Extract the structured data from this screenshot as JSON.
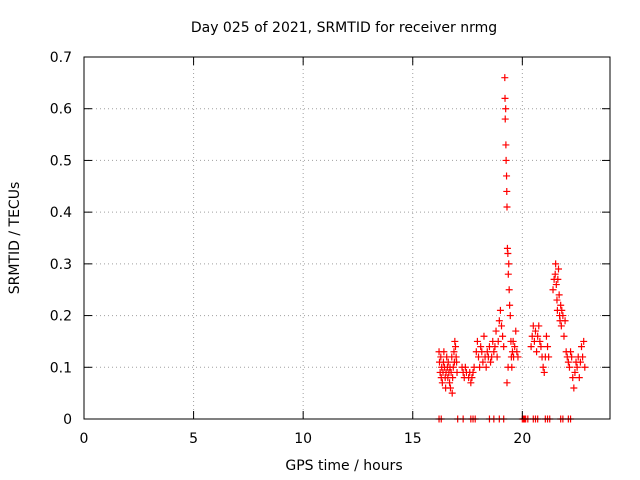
{
  "chart_data": {
    "type": "scatter",
    "title": "Day 025 of 2021, SRMTID for receiver nrmg",
    "xlabel": "GPS time / hours",
    "ylabel": "SRMTID / TECUs",
    "xlim": [
      0,
      24
    ],
    "ylim": [
      0,
      0.7
    ],
    "xticks": [
      "0",
      "5",
      "10",
      "15",
      "20"
    ],
    "yticks": [
      "0",
      "0.1",
      "0.2",
      "0.3",
      "0.4",
      "0.5",
      "0.6",
      "0.7"
    ],
    "grid": true,
    "marker": "+",
    "color": "#ff0000",
    "series": [
      {
        "name": "SRMTID",
        "points": [
          [
            16.2,
            0.13
          ],
          [
            16.22,
            0.11
          ],
          [
            16.25,
            0.09
          ],
          [
            16.28,
            0.12
          ],
          [
            16.3,
            0.08
          ],
          [
            16.32,
            0.1
          ],
          [
            16.35,
            0.07
          ],
          [
            16.38,
            0.09
          ],
          [
            16.4,
            0.11
          ],
          [
            16.42,
            0.13
          ],
          [
            16.45,
            0.1
          ],
          [
            16.48,
            0.08
          ],
          [
            16.5,
            0.06
          ],
          [
            16.52,
            0.09
          ],
          [
            16.55,
            0.12
          ],
          [
            16.58,
            0.1
          ],
          [
            16.6,
            0.08
          ],
          [
            16.62,
            0.11
          ],
          [
            16.65,
            0.09
          ],
          [
            16.68,
            0.07
          ],
          [
            16.7,
            0.1
          ],
          [
            16.72,
            0.06
          ],
          [
            16.75,
            0.09
          ],
          [
            16.78,
            0.12
          ],
          [
            16.8,
            0.05
          ],
          [
            16.82,
            0.08
          ],
          [
            16.85,
            0.1
          ],
          [
            16.88,
            0.13
          ],
          [
            16.9,
            0.11
          ],
          [
            16.92,
            0.15
          ],
          [
            16.95,
            0.14
          ],
          [
            16.98,
            0.12
          ],
          [
            17.0,
            0.11
          ],
          [
            17.02,
            0.09
          ],
          [
            17.25,
            0.1
          ],
          [
            17.3,
            0.09
          ],
          [
            17.35,
            0.08
          ],
          [
            17.4,
            0.1
          ],
          [
            17.45,
            0.09
          ],
          [
            17.55,
            0.08
          ],
          [
            17.6,
            0.09
          ],
          [
            17.65,
            0.07
          ],
          [
            17.7,
            0.08
          ],
          [
            17.75,
            0.09
          ],
          [
            17.8,
            0.1
          ],
          [
            17.9,
            0.13
          ],
          [
            17.95,
            0.15
          ],
          [
            18.0,
            0.12
          ],
          [
            18.05,
            0.1
          ],
          [
            18.1,
            0.14
          ],
          [
            18.15,
            0.13
          ],
          [
            18.2,
            0.11
          ],
          [
            18.25,
            0.16
          ],
          [
            18.3,
            0.12
          ],
          [
            18.35,
            0.1
          ],
          [
            18.4,
            0.13
          ],
          [
            18.45,
            0.12
          ],
          [
            18.5,
            0.14
          ],
          [
            18.55,
            0.11
          ],
          [
            18.6,
            0.12
          ],
          [
            18.65,
            0.15
          ],
          [
            18.7,
            0.13
          ],
          [
            18.75,
            0.14
          ],
          [
            18.8,
            0.17
          ],
          [
            18.85,
            0.12
          ],
          [
            18.9,
            0.15
          ],
          [
            18.95,
            0.19
          ],
          [
            19.0,
            0.21
          ],
          [
            19.05,
            0.18
          ],
          [
            19.1,
            0.16
          ],
          [
            19.15,
            0.14
          ],
          [
            19.2,
            0.66
          ],
          [
            19.21,
            0.62
          ],
          [
            19.22,
            0.58
          ],
          [
            19.24,
            0.6
          ],
          [
            19.25,
            0.53
          ],
          [
            19.26,
            0.5
          ],
          [
            19.28,
            0.47
          ],
          [
            19.29,
            0.44
          ],
          [
            19.3,
            0.41
          ],
          [
            19.32,
            0.33
          ],
          [
            19.34,
            0.32
          ],
          [
            19.36,
            0.28
          ],
          [
            19.38,
            0.3
          ],
          [
            19.4,
            0.25
          ],
          [
            19.42,
            0.22
          ],
          [
            19.45,
            0.2
          ],
          [
            19.48,
            0.15
          ],
          [
            19.5,
            0.12
          ],
          [
            19.52,
            0.1
          ],
          [
            19.55,
            0.13
          ],
          [
            19.58,
            0.15
          ],
          [
            19.6,
            0.12
          ],
          [
            19.65,
            0.14
          ],
          [
            19.7,
            0.17
          ],
          [
            19.75,
            0.13
          ],
          [
            19.8,
            0.12
          ],
          [
            19.3,
            0.07
          ],
          [
            19.35,
            0.1
          ],
          [
            20.4,
            0.14
          ],
          [
            20.45,
            0.16
          ],
          [
            20.5,
            0.18
          ],
          [
            20.55,
            0.15
          ],
          [
            20.6,
            0.17
          ],
          [
            20.65,
            0.13
          ],
          [
            20.7,
            0.16
          ],
          [
            20.75,
            0.18
          ],
          [
            20.8,
            0.15
          ],
          [
            20.85,
            0.14
          ],
          [
            20.9,
            0.12
          ],
          [
            20.95,
            0.1
          ],
          [
            21.0,
            0.09
          ],
          [
            21.05,
            0.12
          ],
          [
            21.1,
            0.16
          ],
          [
            21.15,
            0.14
          ],
          [
            21.2,
            0.12
          ],
          [
            21.4,
            0.25
          ],
          [
            21.45,
            0.27
          ],
          [
            21.5,
            0.28
          ],
          [
            21.52,
            0.3
          ],
          [
            21.55,
            0.26
          ],
          [
            21.58,
            0.23
          ],
          [
            21.6,
            0.21
          ],
          [
            21.62,
            0.27
          ],
          [
            21.65,
            0.29
          ],
          [
            21.68,
            0.24
          ],
          [
            21.7,
            0.2
          ],
          [
            21.72,
            0.19
          ],
          [
            21.75,
            0.22
          ],
          [
            21.78,
            0.18
          ],
          [
            21.8,
            0.21
          ],
          [
            21.85,
            0.2
          ],
          [
            21.9,
            0.16
          ],
          [
            21.95,
            0.19
          ],
          [
            22.0,
            0.13
          ],
          [
            22.05,
            0.12
          ],
          [
            22.1,
            0.11
          ],
          [
            22.15,
            0.1
          ],
          [
            22.2,
            0.13
          ],
          [
            22.25,
            0.12
          ],
          [
            22.3,
            0.08
          ],
          [
            22.35,
            0.06
          ],
          [
            22.4,
            0.09
          ],
          [
            22.45,
            0.11
          ],
          [
            22.5,
            0.1
          ],
          [
            22.55,
            0.12
          ],
          [
            22.6,
            0.08
          ],
          [
            22.65,
            0.11
          ],
          [
            22.7,
            0.14
          ],
          [
            22.75,
            0.12
          ],
          [
            22.8,
            0.15
          ],
          [
            22.85,
            0.1
          ],
          [
            16.2,
            0
          ],
          [
            16.3,
            0
          ],
          [
            17.05,
            0
          ],
          [
            17.3,
            0
          ],
          [
            17.65,
            0
          ],
          [
            17.75,
            0
          ],
          [
            17.85,
            0
          ],
          [
            18.5,
            0
          ],
          [
            18.7,
            0
          ],
          [
            18.95,
            0
          ],
          [
            19.15,
            0
          ],
          [
            20.0,
            0
          ],
          [
            20.05,
            0
          ],
          [
            20.1,
            0
          ],
          [
            20.15,
            0
          ],
          [
            20.25,
            0
          ],
          [
            20.5,
            0
          ],
          [
            20.6,
            0
          ],
          [
            20.7,
            0
          ],
          [
            21.05,
            0
          ],
          [
            21.15,
            0
          ],
          [
            21.25,
            0
          ],
          [
            21.75,
            0
          ],
          [
            21.85,
            0
          ],
          [
            22.1,
            0
          ],
          [
            22.2,
            0
          ]
        ]
      }
    ]
  }
}
